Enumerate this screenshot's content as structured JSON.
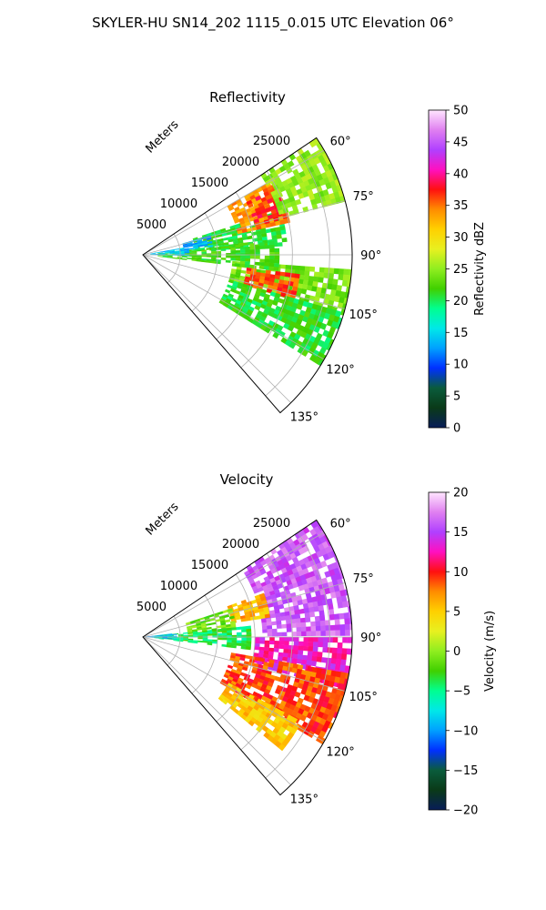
{
  "figure_title": "SKYLER-HU  SN14_202  1115_0.015 UTC Elevation 06°",
  "chart_data": [
    {
      "type": "heatmap",
      "subtype": "polar-sector",
      "title": "Reflectivity",
      "range_axis_label": "Meters",
      "range_ticks": [
        "5000",
        "10000",
        "15000",
        "20000",
        "25000"
      ],
      "range_tick_values": [
        5000,
        10000,
        15000,
        20000,
        25000
      ],
      "azimuth_ticks": [
        "60°",
        "75°",
        "90°",
        "105°",
        "120°",
        "135°"
      ],
      "azimuth_tick_values": [
        60,
        75,
        90,
        105,
        120,
        135
      ],
      "azimuth_range": [
        56,
        139
      ],
      "max_range": 28000,
      "grid": true,
      "colorbar": {
        "label": "Reflectivity dBZ",
        "ticks": [
          "0",
          "5",
          "10",
          "15",
          "20",
          "25",
          "30",
          "35",
          "40",
          "45",
          "50"
        ],
        "range": [
          0,
          50
        ],
        "stops": [
          "#081d58",
          "#0a3a18",
          "#0a5c3c",
          "#0030ff",
          "#00a0ff",
          "#00e8e8",
          "#00ff90",
          "#40d000",
          "#90ee20",
          "#e8f020",
          "#ffd000",
          "#ff8c00",
          "#ff1010",
          "#ff10c0",
          "#b040ff",
          "#e080f0",
          "#ffe6ff"
        ]
      },
      "regions": [
        {
          "az": [
            72,
            86
          ],
          "r": [
            7000,
            19000
          ],
          "value": 21
        },
        {
          "az": [
            60,
            76
          ],
          "r": [
            13000,
            20000
          ],
          "value": 34
        },
        {
          "az": [
            63,
            75
          ],
          "r": [
            15500,
            19500
          ],
          "value": 37
        },
        {
          "az": [
            94,
            106
          ],
          "r": [
            12000,
            28000
          ],
          "value": 24
        },
        {
          "az": [
            97,
            106
          ],
          "r": [
            14000,
            21000
          ],
          "value": 36
        },
        {
          "az": [
            84,
            96
          ],
          "r": [
            2000,
            18000
          ],
          "value": 22
        },
        {
          "az": [
            106,
            121
          ],
          "r": [
            12000,
            28000
          ],
          "value": 21
        },
        {
          "az": [
            56,
            74
          ],
          "r": [
            19000,
            28000
          ],
          "value": 25
        },
        {
          "az": [
            80,
            90
          ],
          "r": [
            1000,
            6000
          ],
          "value": 14
        },
        {
          "az": [
            74,
            82
          ],
          "r": [
            5500,
            9000
          ],
          "value": 13
        }
      ]
    },
    {
      "type": "heatmap",
      "subtype": "polar-sector",
      "title": "Velocity",
      "range_axis_label": "Meters",
      "range_ticks": [
        "5000",
        "10000",
        "15000",
        "20000",
        "25000"
      ],
      "range_tick_values": [
        5000,
        10000,
        15000,
        20000,
        25000
      ],
      "azimuth_ticks": [
        "60°",
        "75°",
        "90°",
        "105°",
        "120°",
        "135°"
      ],
      "azimuth_tick_values": [
        60,
        75,
        90,
        105,
        120,
        135
      ],
      "azimuth_range": [
        56,
        139
      ],
      "max_range": 28000,
      "grid": true,
      "colorbar": {
        "label": "Velocity (m/s)",
        "ticks": [
          "−20",
          "−15",
          "−10",
          "−5",
          "0",
          "5",
          "10",
          "15",
          "20"
        ],
        "range": [
          -20,
          20
        ],
        "stops": [
          "#081d58",
          "#0a3a18",
          "#0a5c3c",
          "#0030ff",
          "#00a0ff",
          "#00e8e8",
          "#00ff90",
          "#40d000",
          "#90ee20",
          "#e8f020",
          "#ffd000",
          "#ff8c00",
          "#ff1010",
          "#ff10c0",
          "#b040ff",
          "#e080f0",
          "#ffe6ff"
        ]
      },
      "regions": [
        {
          "az": [
            56,
            88
          ],
          "r": [
            16000,
            28000
          ],
          "value": 16
        },
        {
          "az": [
            90,
            104
          ],
          "r": [
            15000,
            28000
          ],
          "value": 13
        },
        {
          "az": [
            100,
            120
          ],
          "r": [
            12000,
            28000
          ],
          "value": 9
        },
        {
          "az": [
            70,
            80
          ],
          "r": [
            12000,
            17000
          ],
          "value": 6
        },
        {
          "az": [
            72,
            86
          ],
          "r": [
            6000,
            12000
          ],
          "value": -1
        },
        {
          "az": [
            84,
            96
          ],
          "r": [
            1500,
            14000
          ],
          "value": -4
        },
        {
          "az": [
            118,
            128
          ],
          "r": [
            13000,
            24000
          ],
          "value": 5
        },
        {
          "az": [
            83,
            94
          ],
          "r": [
            0,
            4000
          ],
          "value": -9
        }
      ]
    }
  ]
}
